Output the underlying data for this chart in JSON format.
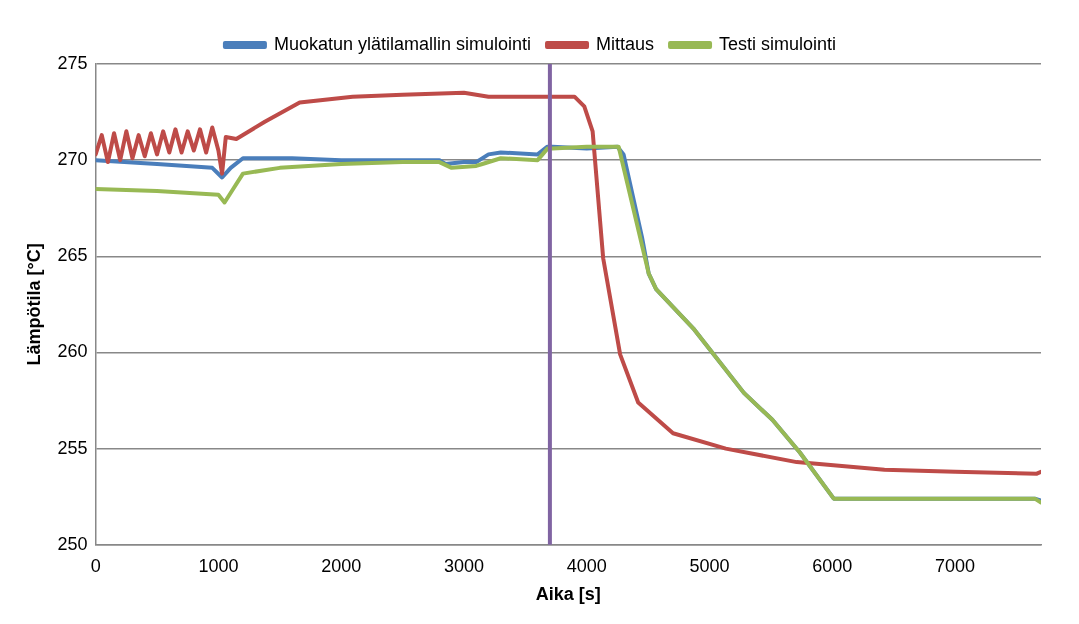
{
  "chart_data": {
    "type": "line",
    "xlabel": "Aika [s]",
    "ylabel": "Lämpötila [°C]",
    "xlim": [
      0,
      7700
    ],
    "xticks": [
      0,
      1000,
      2000,
      3000,
      4000,
      5000,
      6000,
      7000
    ],
    "ylim": [
      250,
      275
    ],
    "yticks": [
      250,
      255,
      260,
      265,
      270,
      275
    ],
    "grid": "y",
    "legend": "top",
    "marker": "none",
    "line_style": "solid",
    "ref_lines": [
      {
        "axis": "x",
        "value": 3700,
        "color": "#8064a2"
      }
    ],
    "series": [
      {
        "name": "Muokatun ylätilamallin simulointi",
        "color": "#4a7ebb",
        "x": [
          0,
          500,
          950,
          1030,
          1100,
          1200,
          1600,
          2000,
          2500,
          2800,
          2850,
          3000,
          3100,
          3200,
          3300,
          3600,
          3680,
          3720,
          4000,
          4250,
          4300,
          4450,
          4505,
          4565,
          4875,
          5280,
          5512,
          5736,
          6012,
          6200,
          7000,
          7650,
          7700
        ],
        "values": [
          270.0,
          269.8,
          269.6,
          269.1,
          269.6,
          270.1,
          270.1,
          270.0,
          270.0,
          270.0,
          269.8,
          269.9,
          269.9,
          270.3,
          270.4,
          270.3,
          270.7,
          270.7,
          270.6,
          270.7,
          270.3,
          266.0,
          264.1,
          263.3,
          261.2,
          257.9,
          256.5,
          254.8,
          252.4,
          252.4,
          252.4,
          252.4,
          252.3
        ]
      },
      {
        "name": "Mittaus",
        "color": "#be4b48",
        "x": [
          0,
          50,
          100,
          150,
          200,
          250,
          300,
          350,
          400,
          450,
          500,
          550,
          600,
          650,
          700,
          750,
          800,
          850,
          900,
          950,
          1000,
          1030,
          1060,
          1146,
          1378,
          1662,
          2093,
          2500,
          3000,
          3200,
          3500,
          3900,
          3980,
          4048,
          4134,
          4272,
          4419,
          4703,
          5133,
          5710,
          6425,
          7000,
          7666,
          7700
        ],
        "values": [
          270.3,
          271.3,
          269.9,
          271.4,
          270.0,
          271.5,
          270.1,
          271.3,
          270.2,
          271.4,
          270.3,
          271.5,
          270.4,
          271.6,
          270.4,
          271.5,
          270.5,
          271.6,
          270.4,
          271.7,
          270.5,
          269.3,
          271.2,
          271.1,
          272.0,
          273.0,
          273.3,
          273.4,
          273.5,
          273.3,
          273.3,
          273.3,
          272.8,
          271.5,
          264.9,
          259.9,
          257.4,
          255.8,
          255.0,
          254.3,
          253.9,
          253.8,
          253.7,
          253.8
        ]
      },
      {
        "name": "Testi simulointi",
        "color": "#98b954",
        "x": [
          0,
          500,
          1000,
          1050,
          1120,
          1200,
          1500,
          2000,
          2500,
          2800,
          2900,
          3100,
          3150,
          3300,
          3600,
          3680,
          3720,
          4000,
          4260,
          4505,
          4565,
          4875,
          5280,
          5512,
          5736,
          6012,
          6200,
          7000,
          7650,
          7700
        ],
        "values": [
          268.5,
          268.4,
          268.2,
          267.8,
          268.5,
          269.3,
          269.6,
          269.8,
          269.9,
          269.9,
          269.6,
          269.7,
          269.8,
          270.1,
          270.0,
          270.6,
          270.6,
          270.7,
          270.7,
          264.1,
          263.3,
          261.2,
          257.9,
          256.5,
          254.8,
          252.4,
          252.4,
          252.4,
          252.4,
          252.2
        ]
      }
    ]
  }
}
